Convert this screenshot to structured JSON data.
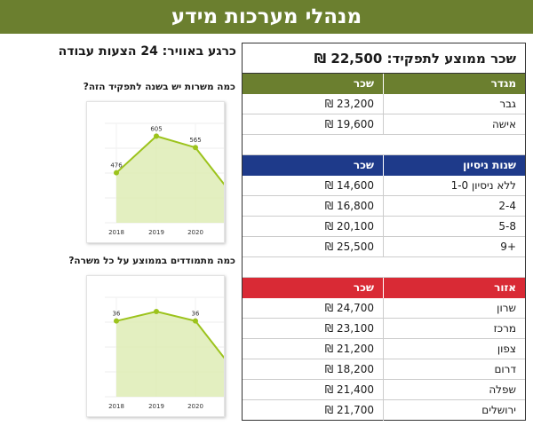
{
  "header": {
    "title": "מנהלי מערכות מידע"
  },
  "summary": {
    "jobs_text": "כרגע באוויר: 24 הצעות עבודה"
  },
  "salary_table": {
    "title": "שכר ממוצע לתפקיד: 22,500 ₪",
    "gender": {
      "headers": [
        "מגדר",
        "שכר"
      ],
      "rows": [
        [
          "גבר",
          "23,200 ₪"
        ],
        [
          "אישה",
          "19,600 ₪"
        ]
      ]
    },
    "experience": {
      "headers": [
        "שנות ניסיון",
        "שכר"
      ],
      "rows": [
        [
          "ללא ניסיון 1-0",
          "14,600 ₪"
        ],
        [
          "2-4",
          "16,800 ₪"
        ],
        [
          "5-8",
          "20,100 ₪"
        ],
        [
          "+9",
          "25,500 ₪"
        ]
      ]
    },
    "region": {
      "headers": [
        "אזור",
        "שכר"
      ],
      "rows": [
        [
          "שרון",
          "24,700 ₪"
        ],
        [
          "מרכז",
          "23,100 ₪"
        ],
        [
          "צפון",
          "21,200 ₪"
        ],
        [
          "דרום",
          "18,200 ₪"
        ],
        [
          "שפלה",
          "21,400 ₪"
        ],
        [
          "ירושלים",
          "21,700 ₪"
        ]
      ]
    }
  },
  "questions": {
    "q1": "כמה משרות יש בשנה לתפקיד הזה?",
    "q2": "כמה מתמודדים בממוצע על כל משרה?"
  },
  "chart_data": [
    {
      "type": "area",
      "categories": [
        "2018",
        "2019",
        "2020"
      ],
      "values": [
        476,
        605,
        565
      ],
      "title": "",
      "xlabel": "",
      "ylabel": "",
      "colors": {
        "line": "#9cc31c",
        "fill": "#dcebb0"
      }
    },
    {
      "type": "area",
      "categories": [
        "2018",
        "2019",
        "2020"
      ],
      "values": [
        36,
        38,
        36
      ],
      "data_labels": [
        "36",
        "",
        "36"
      ],
      "title": "",
      "xlabel": "",
      "ylabel": "",
      "colors": {
        "line": "#9cc31c",
        "fill": "#dcebb0"
      }
    }
  ]
}
